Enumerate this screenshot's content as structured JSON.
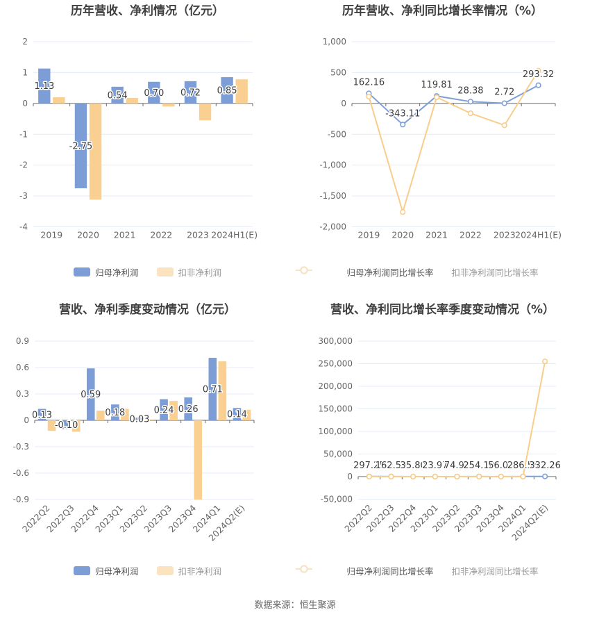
{
  "page": {
    "background": "#ffffff",
    "footer_text": "数据来源：恒生聚源"
  },
  "colors": {
    "blue_series": "#7c9dd5",
    "blue_line": "#7e9fd8",
    "orange_bar": "#f9d092",
    "orange_line": "#f9cd8b",
    "orange_legend": "#fbe3bf",
    "grid_line": "#e4ebf7",
    "axis_line": "#666666",
    "tick_text": "#666666",
    "data_label": "#3c3c3c",
    "title_text": "#404040",
    "legend_text": "#555555",
    "legend_text_secondary": "#999999"
  },
  "chart_data": [
    {
      "id": "annual-amount",
      "type": "bar",
      "title": "历年营收、净利情况（亿元）",
      "ylabel": "",
      "xlabel": "",
      "categories": [
        "2019",
        "2020",
        "2021",
        "2022",
        "2023",
        "2024H1(E)"
      ],
      "series": [
        {
          "name": "归母净利润",
          "color": "#7c9dd5",
          "values": [
            1.13,
            -2.75,
            0.54,
            0.7,
            0.72,
            0.85
          ],
          "labels": [
            "1.13",
            "-2.75",
            "0.54",
            "0.70",
            "0.72",
            "0.85"
          ]
        },
        {
          "name": "扣非净利润",
          "color": "#f9d092",
          "values": [
            0.2,
            -3.12,
            0.18,
            -0.1,
            -0.55,
            0.78
          ]
        }
      ],
      "ylim": [
        -4,
        2
      ],
      "y_ticks": [
        {
          "v": 2,
          "t": "2"
        },
        {
          "v": 1,
          "t": "1"
        },
        {
          "v": 0,
          "t": "0"
        },
        {
          "v": -1,
          "t": "-1"
        },
        {
          "v": -2,
          "t": "-2"
        },
        {
          "v": -3,
          "t": "-3"
        },
        {
          "v": -4,
          "t": "-4"
        }
      ],
      "grid": true,
      "legend_position": "bottom",
      "x_label_rotate": 0
    },
    {
      "id": "annual-growth",
      "type": "line",
      "title": "历年营收、净利同比增长率情况（%）",
      "ylabel": "",
      "xlabel": "",
      "categories": [
        "2019",
        "2020",
        "2021",
        "2022",
        "2023",
        "2024H1(E)"
      ],
      "series": [
        {
          "name": "归母净利润同比增长率",
          "color": "#7e9fd8",
          "values": [
            162.16,
            -343.11,
            119.81,
            28.38,
            2.72,
            293.32
          ],
          "labels": [
            "162.16",
            "-343.11",
            "119.81",
            "28.38",
            "2.72",
            "293.32"
          ]
        },
        {
          "name": "扣非净利润同比增长率",
          "color": "#f9cd8b",
          "values": [
            110,
            -1760,
            100,
            -160,
            -355,
            530
          ]
        }
      ],
      "ylim": [
        -2000,
        1000
      ],
      "y_ticks": [
        {
          "v": 1000,
          "t": "1,000"
        },
        {
          "v": 500,
          "t": "500"
        },
        {
          "v": 0,
          "t": "0"
        },
        {
          "v": -500,
          "t": "-500"
        },
        {
          "v": -1000,
          "t": "-1,000"
        },
        {
          "v": -1500,
          "t": "-1,500"
        },
        {
          "v": -2000,
          "t": "-2,000"
        }
      ],
      "grid": true,
      "legend_position": "bottom",
      "x_label_rotate": 0
    },
    {
      "id": "quarterly-amount",
      "type": "bar",
      "title": "营收、净利季度变动情况（亿元）",
      "ylabel": "",
      "xlabel": "",
      "categories": [
        "2022Q2",
        "2022Q3",
        "2022Q4",
        "2023Q1",
        "2023Q2",
        "2023Q3",
        "2023Q4",
        "2024Q1",
        "2024Q2(E)"
      ],
      "series": [
        {
          "name": "归母净利润",
          "color": "#7c9dd5",
          "values": [
            0.13,
            -0.1,
            0.59,
            0.18,
            0.03,
            0.24,
            0.26,
            0.71,
            0.14
          ],
          "labels": [
            "0.13",
            "-0.10",
            "0.59",
            "0.18",
            "0.03",
            "0.24",
            "0.26",
            "0.71",
            "0.14"
          ]
        },
        {
          "name": "扣非净利润",
          "color": "#f9d092",
          "values": [
            -0.12,
            -0.13,
            0.11,
            0.13,
            0.01,
            0.22,
            -0.9,
            0.67,
            0.12
          ]
        }
      ],
      "ylim": [
        -0.9,
        0.9
      ],
      "y_ticks": [
        {
          "v": 0.9,
          "t": "0.9"
        },
        {
          "v": 0.6,
          "t": "0.6"
        },
        {
          "v": 0.3,
          "t": "0.3"
        },
        {
          "v": 0,
          "t": "0"
        },
        {
          "v": -0.3,
          "t": "-0.3"
        },
        {
          "v": -0.6,
          "t": "-0.6"
        },
        {
          "v": -0.9,
          "t": "-0.9"
        }
      ],
      "grid": true,
      "legend_position": "bottom",
      "x_label_rotate": 45
    },
    {
      "id": "quarterly-growth",
      "type": "line",
      "title": "营收、净利同比增长率季度变动情况（%）",
      "ylabel": "",
      "xlabel": "",
      "categories": [
        "2022Q2",
        "2022Q3",
        "2022Q4",
        "2023Q1",
        "2023Q2",
        "2023Q3",
        "2023Q4",
        "2024Q1",
        "2024Q2(E)"
      ],
      "series": [
        {
          "name": "归母净利润同比增长率",
          "color": "#7e9fd8",
          "values": [
            297.25,
            162.59,
            35.8,
            23.97,
            74.92,
            254.18,
            56.02,
            286.55,
            332.26
          ],
          "labels": [
            "297.25",
            "162.59",
            "35.80",
            "23.97",
            "74.92",
            "254.18",
            "56.02",
            "286.55",
            "332.26"
          ]
        },
        {
          "name": "扣非净利润同比增长率",
          "color": "#f9cd8b",
          "values": [
            0,
            0,
            0,
            0,
            0,
            0,
            0,
            0,
            255000
          ]
        }
      ],
      "ylim": [
        -50000,
        300000
      ],
      "y_ticks": [
        {
          "v": 300000,
          "t": "300,000"
        },
        {
          "v": 250000,
          "t": "250,000"
        },
        {
          "v": 200000,
          "t": "200,000"
        },
        {
          "v": 150000,
          "t": "150,000"
        },
        {
          "v": 100000,
          "t": "100,000"
        },
        {
          "v": 50000,
          "t": "50,000"
        },
        {
          "v": 0,
          "t": "0"
        },
        {
          "v": -50000,
          "t": "-50,000"
        }
      ],
      "grid": true,
      "legend_position": "bottom",
      "x_label_rotate": 45
    }
  ]
}
